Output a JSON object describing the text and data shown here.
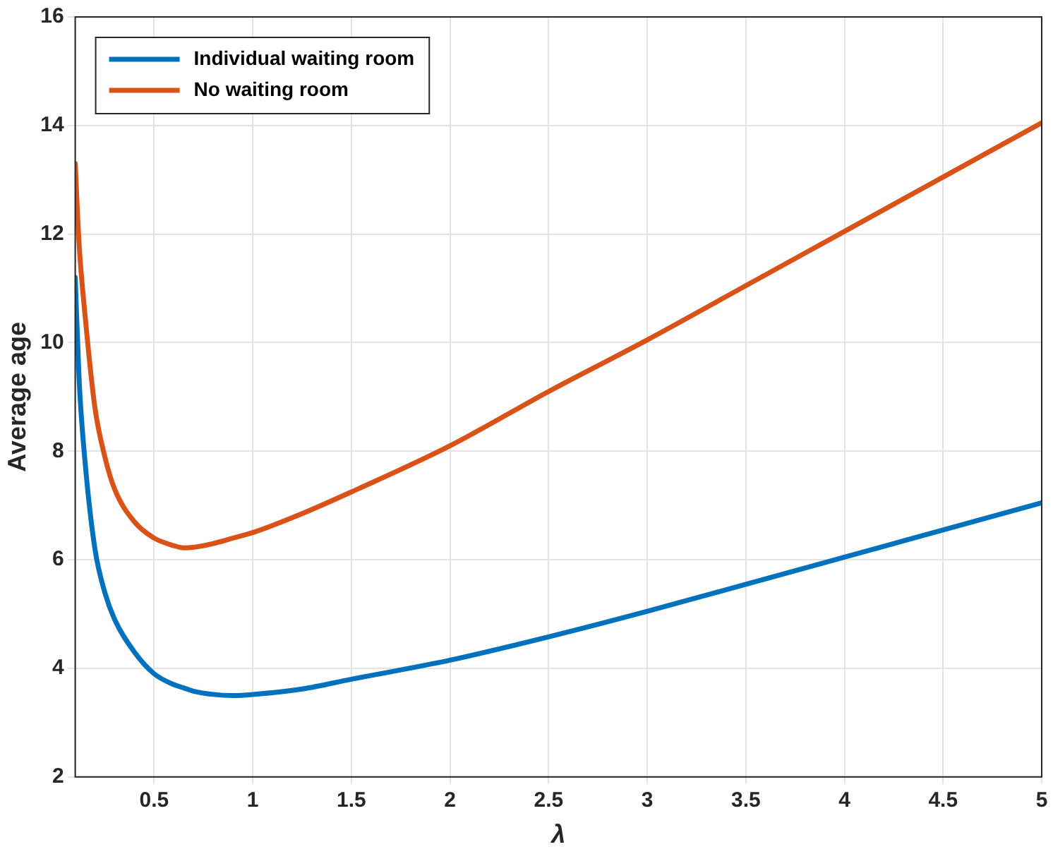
{
  "chart_data": {
    "type": "line",
    "xlabel": "λ",
    "ylabel": "Average age",
    "xlim": [
      0.1,
      5
    ],
    "xticks": [
      0.5,
      1,
      1.5,
      2,
      2.5,
      3,
      3.5,
      4,
      4.5,
      5
    ],
    "ylim": [
      2,
      16
    ],
    "yticks": [
      2,
      4,
      6,
      8,
      10,
      12,
      14,
      16
    ],
    "grid": true,
    "legend": "top left",
    "marker": "none",
    "line_style": "solid",
    "x": [
      0.1,
      0.12,
      0.15,
      0.2,
      0.25,
      0.3,
      0.4,
      0.5,
      0.6,
      0.65,
      0.7,
      0.8,
      0.9,
      1,
      1.25,
      1.5,
      2,
      2.5,
      3,
      3.5,
      4,
      4.5,
      5
    ],
    "series": [
      {
        "name": "Individual waiting room",
        "color": "#0072bd",
        "values": [
          11.2,
          9.3,
          7.8,
          6.2,
          5.4,
          4.9,
          4.3,
          3.9,
          3.7,
          3.64,
          3.58,
          3.52,
          3.5,
          3.52,
          3.62,
          3.8,
          4.15,
          4.58,
          5.05,
          5.55,
          6.05,
          6.55,
          7.05
        ]
      },
      {
        "name": "No waiting room",
        "color": "#d95319",
        "values": [
          13.3,
          11.8,
          10.5,
          8.8,
          7.9,
          7.3,
          6.7,
          6.4,
          6.26,
          6.22,
          6.23,
          6.3,
          6.4,
          6.5,
          6.85,
          7.25,
          8.1,
          9.1,
          10.05,
          11.05,
          12.05,
          13.05,
          14.05
        ]
      }
    ]
  }
}
